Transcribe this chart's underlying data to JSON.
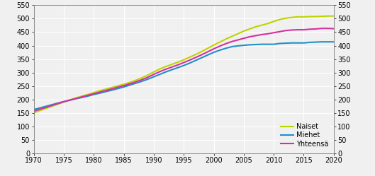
{
  "years": [
    1970,
    1971,
    1972,
    1973,
    1974,
    1975,
    1976,
    1977,
    1978,
    1979,
    1980,
    1981,
    1982,
    1983,
    1984,
    1985,
    1986,
    1987,
    1988,
    1989,
    1990,
    1991,
    1992,
    1993,
    1994,
    1995,
    1996,
    1997,
    1998,
    1999,
    2000,
    2001,
    2002,
    2003,
    2004,
    2005,
    2006,
    2007,
    2008,
    2009,
    2010,
    2011,
    2012,
    2013,
    2014,
    2015,
    2016,
    2017,
    2018,
    2019,
    2020
  ],
  "naiset": [
    150,
    158,
    166,
    174,
    182,
    190,
    198,
    205,
    212,
    218,
    225,
    232,
    238,
    244,
    250,
    256,
    263,
    271,
    280,
    290,
    302,
    313,
    322,
    330,
    338,
    347,
    357,
    367,
    378,
    390,
    402,
    413,
    424,
    434,
    444,
    454,
    462,
    470,
    476,
    482,
    490,
    497,
    502,
    505,
    507,
    507,
    508,
    508,
    509,
    510,
    510
  ],
  "miehet": [
    162,
    168,
    174,
    180,
    186,
    192,
    197,
    202,
    207,
    212,
    218,
    223,
    229,
    234,
    240,
    246,
    253,
    260,
    267,
    275,
    284,
    293,
    302,
    310,
    318,
    326,
    335,
    345,
    355,
    365,
    375,
    383,
    390,
    396,
    399,
    401,
    403,
    404,
    405,
    405,
    405,
    408,
    409,
    410,
    410,
    410,
    412,
    413,
    414,
    414,
    414
  ],
  "yhteensa": [
    156,
    163,
    170,
    177,
    184,
    191,
    197,
    203,
    209,
    215,
    221,
    227,
    233,
    239,
    245,
    251,
    258,
    265,
    273,
    282,
    293,
    303,
    312,
    320,
    328,
    337,
    346,
    356,
    366,
    377,
    388,
    398,
    407,
    415,
    421,
    427,
    433,
    437,
    441,
    444,
    448,
    452,
    456,
    458,
    459,
    459,
    461,
    462,
    464,
    464,
    463
  ],
  "naiset_color": "#bcd400",
  "miehet_color": "#2090c8",
  "yhteensa_color": "#d430a0",
  "background_color": "#f0f0f0",
  "grid_color": "#ffffff",
  "ylim": [
    0,
    550
  ],
  "xlim": [
    1970,
    2020
  ],
  "yticks": [
    0,
    50,
    100,
    150,
    200,
    250,
    300,
    350,
    400,
    450,
    500,
    550
  ],
  "xticks": [
    1970,
    1975,
    1980,
    1985,
    1990,
    1995,
    2000,
    2005,
    2010,
    2015,
    2020
  ],
  "legend_labels": [
    "Naiset",
    "Miehet",
    "Yhteensä"
  ],
  "line_width": 1.5,
  "tick_fontsize": 7,
  "legend_fontsize": 7
}
